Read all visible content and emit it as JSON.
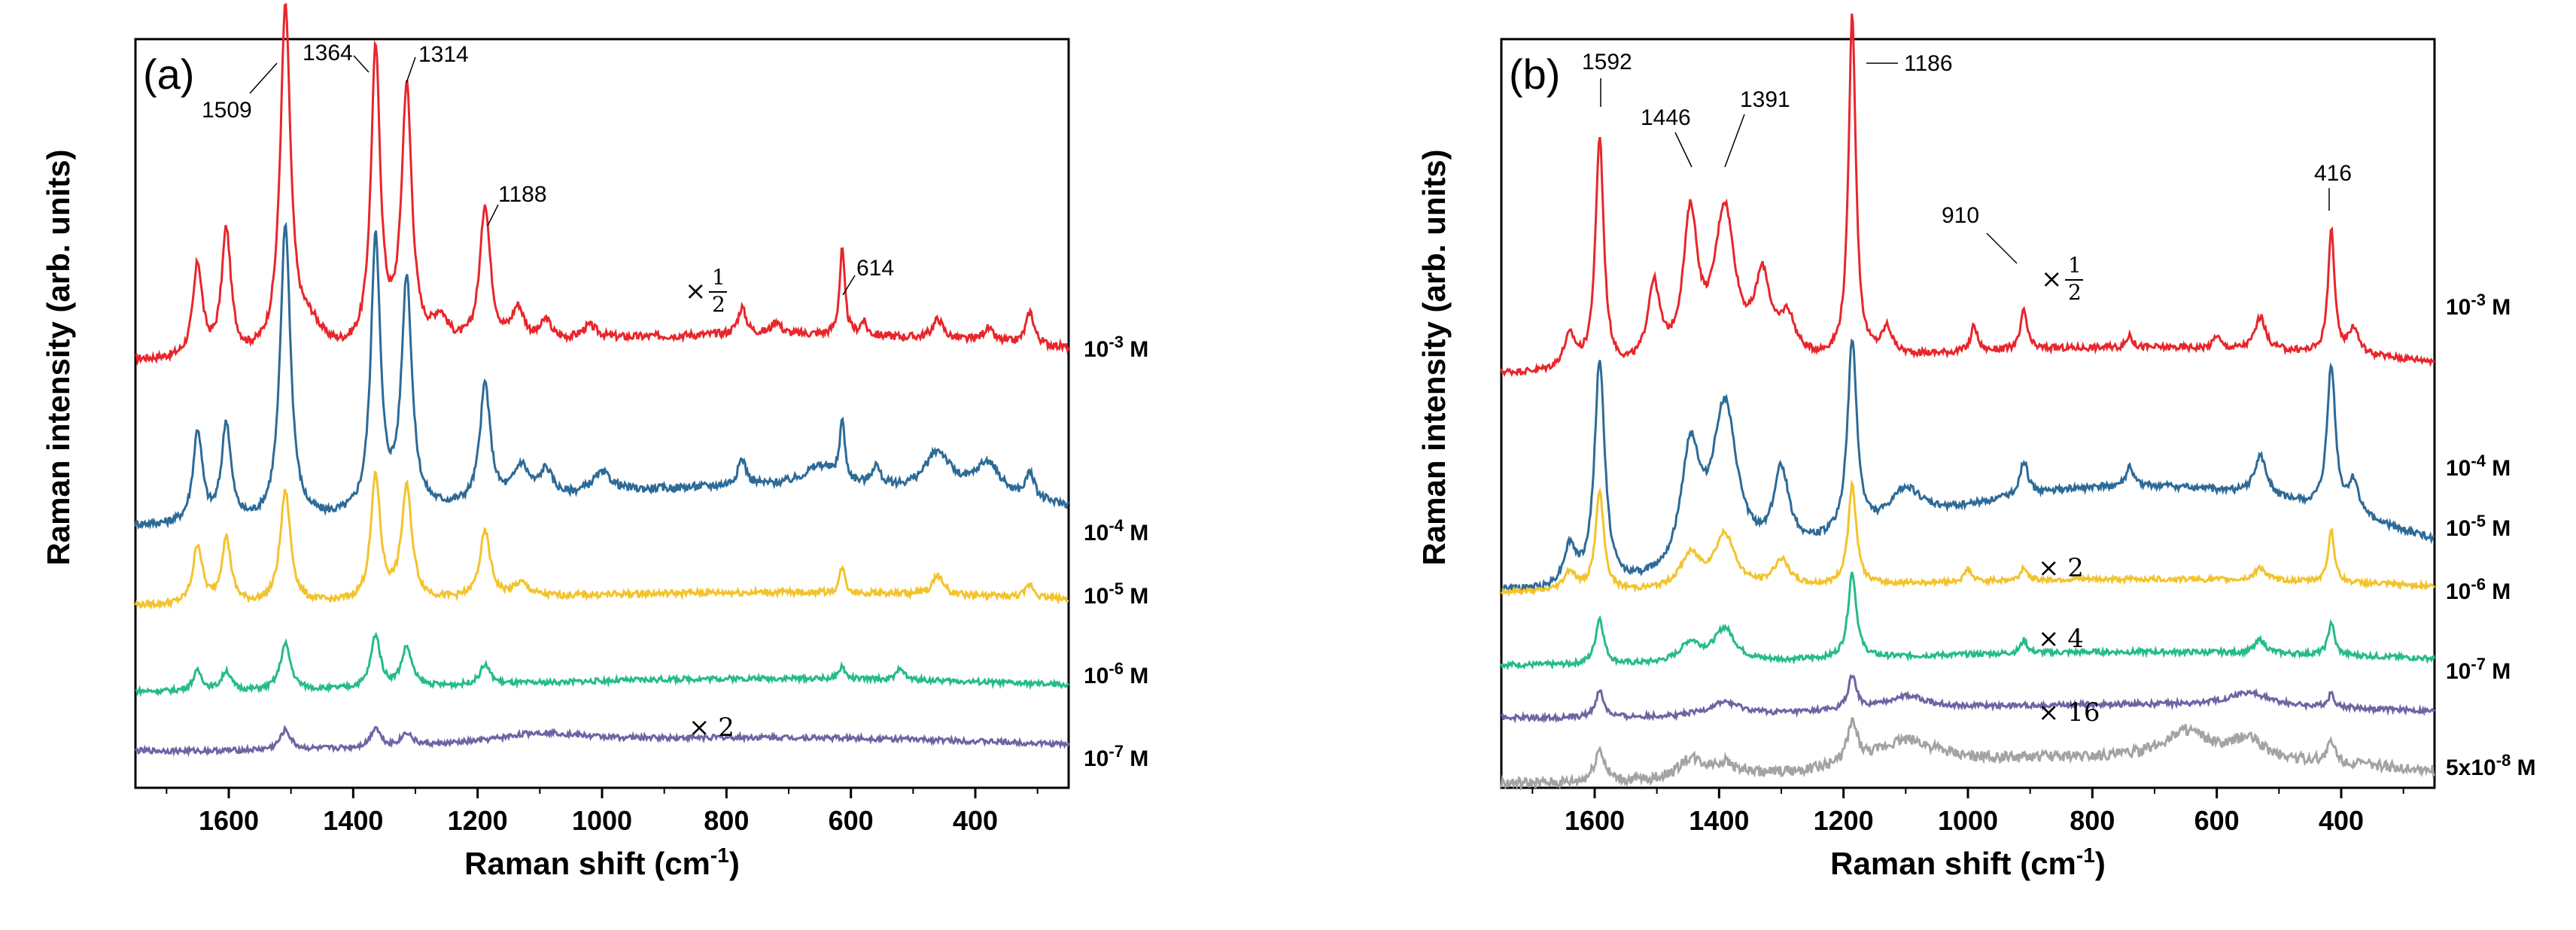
{
  "chart_data": [
    {
      "type": "line",
      "panel": "(a)",
      "xlabel": "Raman shift (cm",
      "xlabel_sup": "-1",
      "xlabel_end": ")",
      "ylabel": "Raman intensity (arb. units)",
      "xlim": [
        1750,
        250
      ],
      "xticks": [
        1600,
        1400,
        1200,
        1000,
        800,
        600,
        400
      ],
      "y_offsets": [
        0.62,
        0.37,
        0.23,
        0.11,
        0.02
      ],
      "series": [
        {
          "name": "10-3 M",
          "label_base": "10",
          "label_exp": "-3",
          "label_unit": " M",
          "color": "#e8262b",
          "baseline": 0.62,
          "drift": 0.02,
          "noise": 0.006,
          "peaks": [
            [
              1650,
              0.14,
              9
            ],
            [
              1604,
              0.19,
              9
            ],
            [
              1509,
              0.52,
              10
            ],
            [
              1470,
              0.04,
              25
            ],
            [
              1364,
              0.45,
              9
            ],
            [
              1314,
              0.39,
              10
            ],
            [
              1260,
              0.04,
              15
            ],
            [
              1188,
              0.21,
              10
            ],
            [
              1135,
              0.05,
              12
            ],
            [
              1090,
              0.03,
              10
            ],
            [
              1020,
              0.02,
              15
            ],
            [
              775,
              0.04,
              8
            ],
            [
              720,
              0.02,
              8
            ],
            [
              614,
              0.13,
              5
            ],
            [
              580,
              0.02,
              6
            ],
            [
              460,
              0.03,
              10
            ],
            [
              380,
              0.02,
              10
            ],
            [
              312,
              0.05,
              8
            ]
          ]
        },
        {
          "name": "10-4 M",
          "label_base": "10",
          "label_exp": "-4",
          "label_unit": " M",
          "color": "#2d6a97",
          "baseline": 0.38,
          "drift": 0.03,
          "noise": 0.006,
          "peaks": [
            [
              1650,
              0.14,
              9
            ],
            [
              1604,
              0.15,
              9
            ],
            [
              1509,
              0.45,
              10
            ],
            [
              1364,
              0.42,
              9
            ],
            [
              1314,
              0.35,
              10
            ],
            [
              1188,
              0.18,
              10
            ],
            [
              1130,
              0.05,
              15
            ],
            [
              1090,
              0.04,
              12
            ],
            [
              1000,
              0.03,
              20
            ],
            [
              775,
              0.04,
              8
            ],
            [
              650,
              0.03,
              30
            ],
            [
              614,
              0.09,
              5
            ],
            [
              560,
              0.03,
              8
            ],
            [
              460,
              0.06,
              25
            ],
            [
              380,
              0.05,
              25
            ],
            [
              312,
              0.04,
              8
            ]
          ]
        },
        {
          "name": "10-5 M",
          "label_base": "10",
          "label_exp": "-5",
          "label_unit": " M",
          "color": "#f3c32c",
          "baseline": 0.24,
          "drift": 0.01,
          "noise": 0.005,
          "peaks": [
            [
              1650,
              0.09,
              9
            ],
            [
              1604,
              0.1,
              9
            ],
            [
              1509,
              0.17,
              10
            ],
            [
              1364,
              0.19,
              9
            ],
            [
              1314,
              0.17,
              10
            ],
            [
              1188,
              0.1,
              10
            ],
            [
              1130,
              0.02,
              15
            ],
            [
              614,
              0.04,
              5
            ],
            [
              460,
              0.03,
              10
            ],
            [
              312,
              0.02,
              8
            ]
          ]
        },
        {
          "name": "10-6 M",
          "label_base": "10",
          "label_exp": "-6",
          "label_unit": " M",
          "color": "#25bb8a",
          "baseline": 0.11,
          "drift": 0.01,
          "noise": 0.004,
          "peaks": [
            [
              1650,
              0.03,
              9
            ],
            [
              1604,
              0.03,
              9
            ],
            [
              1509,
              0.07,
              10
            ],
            [
              1364,
              0.08,
              9
            ],
            [
              1314,
              0.06,
              10
            ],
            [
              1188,
              0.03,
              10
            ],
            [
              614,
              0.02,
              5
            ],
            [
              520,
              0.02,
              6
            ]
          ]
        },
        {
          "name": "10-7 M",
          "label_base": "10",
          "label_exp": "-7",
          "label_unit": " M",
          "color": "#6e64a3",
          "baseline": 0.02,
          "drift": 0.01,
          "noise": 0.004,
          "peaks": [
            [
              1509,
              0.03,
              10
            ],
            [
              1364,
              0.03,
              9
            ],
            [
              1314,
              0.02,
              10
            ],
            [
              1100,
              0.015,
              80
            ]
          ]
        }
      ],
      "peak_labels": [
        "1509",
        "1364",
        "1314",
        "1188",
        "614"
      ],
      "scale_labels": [
        {
          "text": "×",
          "frac_num": "1",
          "frac_den": "2"
        },
        {
          "text": "× 2"
        }
      ]
    },
    {
      "type": "line",
      "panel": "(b)",
      "xlabel": "Raman shift (cm",
      "xlabel_sup": "-1",
      "xlabel_end": ")",
      "ylabel": "Raman intensity (arb. units)",
      "xlim": [
        1750,
        250
      ],
      "xticks": [
        1600,
        1400,
        1200,
        1000,
        800,
        600,
        400
      ],
      "series": [
        {
          "name": "10-3 M",
          "label_base": "10",
          "label_exp": "-3",
          "label_unit": " M",
          "color": "#e8262b",
          "baseline": 0.6,
          "drift": 0.02,
          "noise": 0.005,
          "peaks": [
            [
              1640,
              0.05,
              12
            ],
            [
              1592,
              0.35,
              8
            ],
            [
              1505,
              0.12,
              12
            ],
            [
              1446,
              0.22,
              14
            ],
            [
              1391,
              0.23,
              20
            ],
            [
              1330,
              0.12,
              15
            ],
            [
              1290,
              0.06,
              15
            ],
            [
              1186,
              0.52,
              7
            ],
            [
              1130,
              0.04,
              10
            ],
            [
              990,
              0.04,
              6
            ],
            [
              910,
              0.06,
              6
            ],
            [
              740,
              0.02,
              5
            ],
            [
              600,
              0.02,
              6
            ],
            [
              530,
              0.05,
              10
            ],
            [
              416,
              0.19,
              6
            ],
            [
              380,
              0.04,
              10
            ]
          ]
        },
        {
          "name": "10-4 M",
          "label_base": "10",
          "label_exp": "-4",
          "label_unit": " M",
          "color": "#2d6a97",
          "baseline": 0.33,
          "drift": 0.08,
          "noise": 0.005,
          "peaks": [
            [
              1640,
              0.06,
              12
            ],
            [
              1592,
              0.34,
              10
            ],
            [
              1446,
              0.18,
              18
            ],
            [
              1391,
              0.24,
              24
            ],
            [
              1300,
              0.12,
              15
            ],
            [
              1186,
              0.29,
              9
            ],
            [
              1100,
              0.05,
              30
            ],
            [
              910,
              0.05,
              8
            ],
            [
              740,
              0.03,
              6
            ],
            [
              530,
              0.06,
              12
            ],
            [
              416,
              0.22,
              8
            ],
            [
              380,
              0.05,
              10
            ]
          ]
        },
        {
          "name": "10-5 M",
          "label_base": "10",
          "label_exp": "-5",
          "label_unit": " M",
          "color": "#f3c32c",
          "baseline": 0.26,
          "drift": 0.01,
          "noise": 0.004,
          "peaks": [
            [
              1640,
              0.03,
              12
            ],
            [
              1592,
              0.15,
              8
            ],
            [
              1446,
              0.05,
              20
            ],
            [
              1391,
              0.08,
              20
            ],
            [
              1300,
              0.04,
              15
            ],
            [
              1186,
              0.15,
              8
            ],
            [
              1000,
              0.02,
              6
            ],
            [
              910,
              0.02,
              6
            ],
            [
              530,
              0.02,
              10
            ],
            [
              416,
              0.08,
              6
            ]
          ]
        },
        {
          "name": "10-6 M",
          "label_base": "10",
          "label_exp": "-6",
          "label_unit": " M",
          "color": "#25bb8a",
          "baseline": 0.15,
          "drift": 0.01,
          "noise": 0.004,
          "peaks": [
            [
              1592,
              0.07,
              8
            ],
            [
              1446,
              0.03,
              20
            ],
            [
              1391,
              0.05,
              20
            ],
            [
              1186,
              0.13,
              8
            ],
            [
              910,
              0.02,
              6
            ],
            [
              530,
              0.02,
              10
            ],
            [
              416,
              0.05,
              6
            ]
          ]
        },
        {
          "name": "10-7 M",
          "label_base": "10",
          "label_exp": "-7",
          "label_unit": " M",
          "color": "#6e64a3",
          "baseline": 0.07,
          "drift": 0.01,
          "noise": 0.004,
          "peaks": [
            [
              1592,
              0.04,
              8
            ],
            [
              1391,
              0.02,
              30
            ],
            [
              1186,
              0.05,
              8
            ],
            [
              1100,
              0.02,
              40
            ],
            [
              550,
              0.02,
              40
            ],
            [
              416,
              0.02,
              6
            ]
          ]
        },
        {
          "name": "5x10-8 M",
          "label_base": "5x10",
          "label_exp": "-8",
          "label_unit": " M",
          "color": "#a3a3a3",
          "baseline": -0.02,
          "drift": 0.02,
          "noise": 0.008,
          "peaks": [
            [
              1592,
              0.05,
              10
            ],
            [
              1446,
              0.03,
              25
            ],
            [
              1391,
              0.02,
              25
            ],
            [
              1186,
              0.06,
              10
            ],
            [
              1100,
              0.04,
              60
            ],
            [
              650,
              0.04,
              40
            ],
            [
              550,
              0.03,
              30
            ],
            [
              416,
              0.03,
              8
            ]
          ]
        }
      ],
      "peak_labels": [
        "1592",
        "1446",
        "1391",
        "1186",
        "910",
        "416"
      ],
      "scale_labels": [
        {
          "text": "×",
          "frac_num": "1",
          "frac_den": "2"
        },
        {
          "text": "× 2"
        },
        {
          "text": "× 4"
        },
        {
          "text": "× 16"
        }
      ]
    }
  ]
}
